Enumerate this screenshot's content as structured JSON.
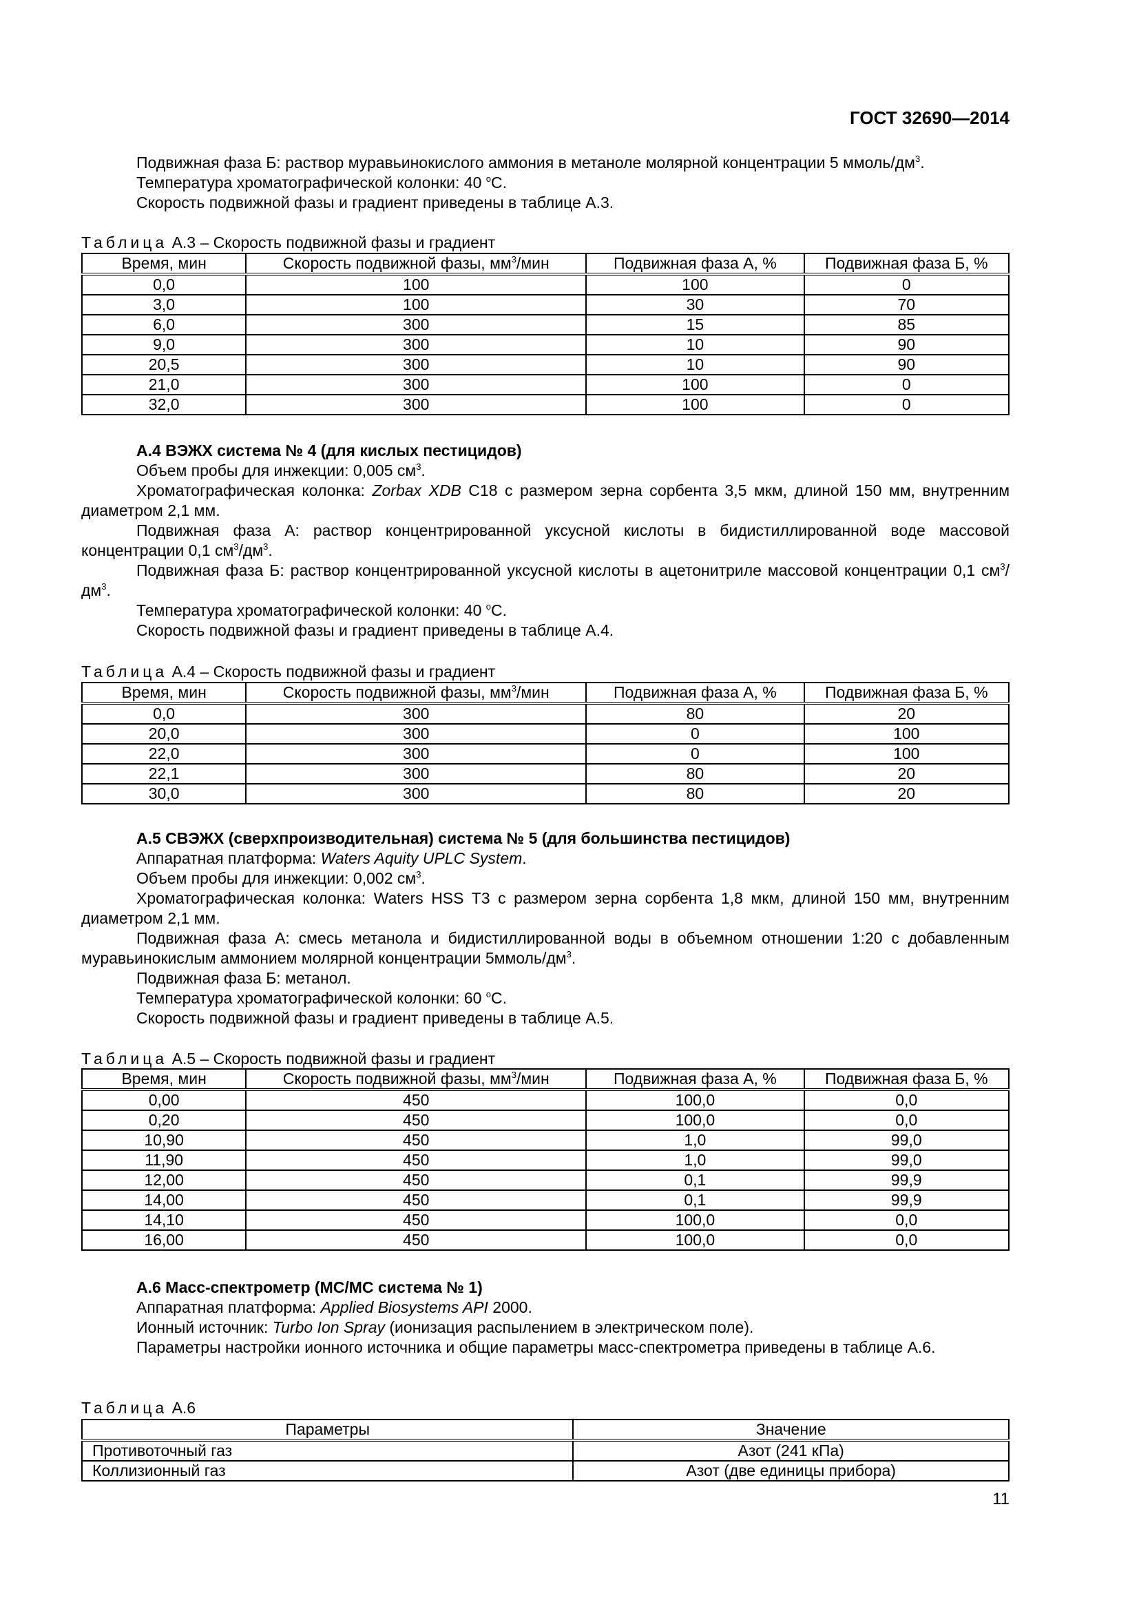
{
  "header": "ГОСТ 32690—2014",
  "page_number": "11",
  "intro": [
    [
      {
        "t": "Подвижная фаза Б: раствор муравьинокислого аммония в метаноле молярной концентрации 5 ммоль/дм"
      },
      {
        "t": "3",
        "s": 1
      },
      {
        "t": "."
      }
    ],
    [
      {
        "t": "Температура хроматографической колонки: 40 "
      },
      {
        "t": "o",
        "s": 1
      },
      {
        "t": "С."
      }
    ],
    [
      {
        "t": "Скорость подвижной фазы и градиент приведены в таблице А.3."
      }
    ]
  ],
  "col_headers": [
    "Время, мин",
    "Скорость подвижной фазы, мм",
    "3",
    "/мин",
    "Подвижная фаза А, %",
    "Подвижная фаза Б, %"
  ],
  "table_a3": {
    "caption_word": "Таблица",
    "caption": "А.3 – Скорость подвижной фазы и градиент",
    "rows": [
      [
        "0,0",
        "100",
        "100",
        "0"
      ],
      [
        "3,0",
        "100",
        "30",
        "70"
      ],
      [
        "6,0",
        "300",
        "15",
        "85"
      ],
      [
        "9,0",
        "300",
        "10",
        "90"
      ],
      [
        "20,5",
        "300",
        "10",
        "90"
      ],
      [
        "21,0",
        "300",
        "100",
        "0"
      ],
      [
        "32,0",
        "300",
        "100",
        "0"
      ]
    ]
  },
  "section_a4": {
    "heading": "А.4 ВЭЖХ система № 4 (для кислых пестицидов)",
    "paras": [
      [
        {
          "t": "Объем пробы для инжекции: 0,005 см"
        },
        {
          "t": "3",
          "s": 1
        },
        {
          "t": "."
        }
      ],
      [
        {
          "t": "Хроматографическая колонка: "
        },
        {
          "t": "Zorbax XDB",
          "i": 1
        },
        {
          "t": " С18 с размером зерна сорбента 3,5 мкм, длиной 150 мм, внутренним диаметром 2,1 мм."
        }
      ],
      [
        {
          "t": "Подвижная фаза А: раствор концентрированной уксусной кислоты в бидистиллированной воде массовой концентрации 0,1 см"
        },
        {
          "t": "3",
          "s": 1
        },
        {
          "t": "/дм"
        },
        {
          "t": "3",
          "s": 1
        },
        {
          "t": "."
        }
      ],
      [
        {
          "t": "Подвижная фаза Б: раствор концентрированной уксусной кислоты в ацетонитриле массовой концентрации 0,1 см"
        },
        {
          "t": "3",
          "s": 1
        },
        {
          "t": "/дм"
        },
        {
          "t": "3",
          "s": 1
        },
        {
          "t": "."
        }
      ],
      [
        {
          "t": "Температура хроматографической колонки: 40 "
        },
        {
          "t": "o",
          "s": 1
        },
        {
          "t": "С."
        }
      ],
      [
        {
          "t": "Скорость подвижной фазы и градиент приведены в таблице А.4."
        }
      ]
    ]
  },
  "table_a4": {
    "caption_word": "Таблица",
    "caption": "А.4 – Скорость подвижной фазы и градиент",
    "rows": [
      [
        "0,0",
        "300",
        "80",
        "20"
      ],
      [
        "20,0",
        "300",
        "0",
        "100"
      ],
      [
        "22,0",
        "300",
        "0",
        "100"
      ],
      [
        "22,1",
        "300",
        "80",
        "20"
      ],
      [
        "30,0",
        "300",
        "80",
        "20"
      ]
    ]
  },
  "section_a5": {
    "heading": "А.5 СВЭЖХ (сверхпроизводительная) система № 5 (для большинства пестицидов)",
    "paras": [
      [
        {
          "t": "Аппаратная платформа: "
        },
        {
          "t": "Waters Aquity UPLC System",
          "i": 1
        },
        {
          "t": "."
        }
      ],
      [
        {
          "t": "Объем пробы для инжекции: 0,002 см"
        },
        {
          "t": "3",
          "s": 1
        },
        {
          "t": "."
        }
      ],
      [
        {
          "t": "Хроматографическая колонка: Waters HSS T3 с размером зерна сорбента 1,8 мкм, длиной 150 мм, внутренним диаметром 2,1 мм."
        }
      ],
      [
        {
          "t": "Подвижная фаза А: смесь метанола и бидистиллированной воды в объемном отношении 1:20 с добавленным муравьинокислым аммонием молярной концентрации 5ммоль/дм"
        },
        {
          "t": "3",
          "s": 1
        },
        {
          "t": "."
        }
      ],
      [
        {
          "t": "Подвижная фаза Б: метанол."
        }
      ],
      [
        {
          "t": "Температура хроматографической колонки: 60 "
        },
        {
          "t": "o",
          "s": 1
        },
        {
          "t": "С."
        }
      ],
      [
        {
          "t": "Скорость подвижной фазы и градиент приведены в таблице А.5."
        }
      ]
    ]
  },
  "table_a5": {
    "caption_word": "Таблица",
    "caption": "А.5 – Скорость подвижной фазы и градиент",
    "rows": [
      [
        "0,00",
        "450",
        "100,0",
        "0,0"
      ],
      [
        "0,20",
        "450",
        "100,0",
        "0,0"
      ],
      [
        "10,90",
        "450",
        "1,0",
        "99,0"
      ],
      [
        "11,90",
        "450",
        "1,0",
        "99,0"
      ],
      [
        "12,00",
        "450",
        "0,1",
        "99,9"
      ],
      [
        "14,00",
        "450",
        "0,1",
        "99,9"
      ],
      [
        "14,10",
        "450",
        "100,0",
        "0,0"
      ],
      [
        "16,00",
        "450",
        "100,0",
        "0,0"
      ]
    ]
  },
  "section_a6": {
    "heading": "А.6 Масс-спектрометр (МС/МС система № 1)",
    "paras": [
      [
        {
          "t": "Аппаратная платформа: "
        },
        {
          "t": "Applied Biosystems API",
          "i": 1
        },
        {
          "t": " 2000."
        }
      ],
      [
        {
          "t": "Ионный источник: "
        },
        {
          "t": "Turbo Ion Spray",
          "i": 1
        },
        {
          "t": " (ионизация распылением в электрическом поле)."
        }
      ],
      [
        {
          "t": "Параметры настройки ионного источника и общие параметры масс-спектрометра приведены в таблице А.6."
        }
      ]
    ]
  },
  "table_a6": {
    "caption_word": "Таблица",
    "caption": "А.6",
    "headers": [
      "Параметры",
      "Значение"
    ],
    "rows": [
      [
        "Противоточный газ",
        "Азот (241 кПа)"
      ],
      [
        "Коллизионный газ",
        "Азот (две единицы прибора)"
      ]
    ]
  }
}
